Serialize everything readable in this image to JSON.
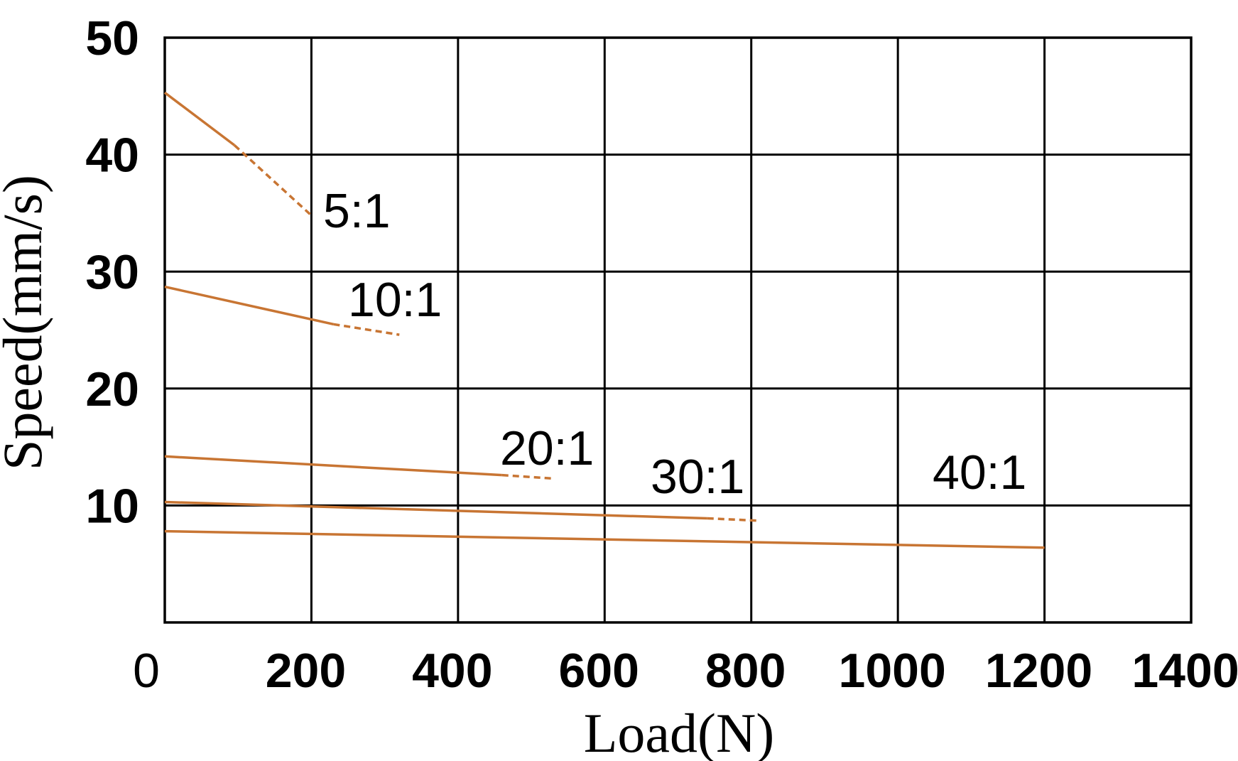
{
  "chart_data": {
    "type": "line",
    "title": "",
    "xlabel": "Load(N)",
    "ylabel": "Speed(mm/s)",
    "xlim": [
      0,
      1400
    ],
    "ylim": [
      0,
      50
    ],
    "x_ticks": [
      "0",
      "200",
      "400",
      "600",
      "800",
      "1000",
      "1200",
      "1400"
    ],
    "y_ticks": [
      "10",
      "20",
      "30",
      "40",
      "50"
    ],
    "grid": true,
    "legend": "none (series labeled inline)",
    "line_color": "#C87533",
    "series": [
      {
        "name": "5:1",
        "solid": [
          [
            0,
            45.3
          ],
          [
            95,
            40.8
          ]
        ],
        "dashed": [
          [
            95,
            40.8
          ],
          [
            200,
            34.8
          ]
        ]
      },
      {
        "name": "10:1",
        "solid": [
          [
            0,
            28.7
          ],
          [
            230,
            25.5
          ]
        ],
        "dashed": [
          [
            230,
            25.5
          ],
          [
            320,
            24.6
          ]
        ]
      },
      {
        "name": "20:1",
        "solid": [
          [
            0,
            14.2
          ],
          [
            460,
            12.6
          ]
        ],
        "dashed": [
          [
            460,
            12.6
          ],
          [
            530,
            12.3
          ]
        ]
      },
      {
        "name": "30:1",
        "solid": [
          [
            0,
            10.3
          ],
          [
            740,
            8.9
          ]
        ],
        "dashed": [
          [
            740,
            8.9
          ],
          [
            810,
            8.7
          ]
        ]
      },
      {
        "name": "40:1",
        "solid": [
          [
            0,
            7.8
          ],
          [
            1200,
            6.4
          ]
        ],
        "dashed": []
      }
    ]
  }
}
